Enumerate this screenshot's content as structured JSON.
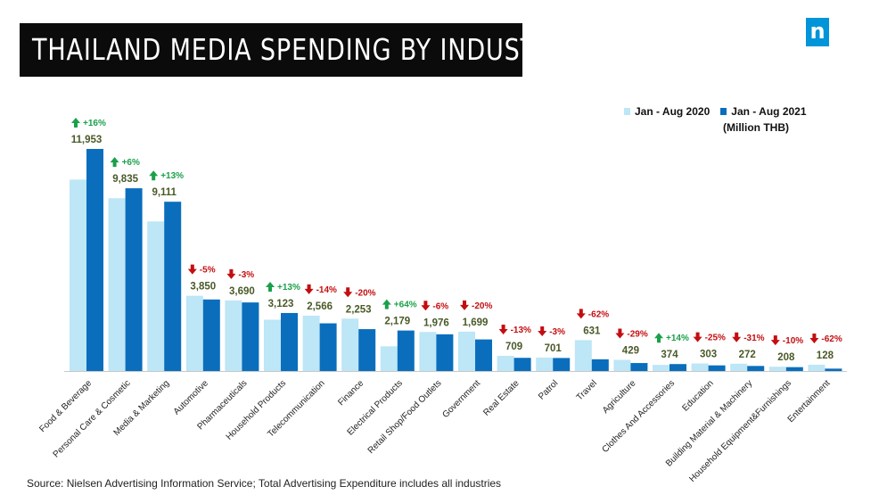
{
  "header": {
    "title": "THAILAND MEDIA SPENDING BY INDUSTRY",
    "logo_text": "n"
  },
  "legend": {
    "series1": "Jan - Aug 2020",
    "series2": "Jan - Aug 2021",
    "unit": "(Million THB)"
  },
  "footer": {
    "source": "Source: Nielsen Advertising Information Service; Total Advertising Expenditure includes all industries"
  },
  "colors": {
    "series1": "#bde6f7",
    "series2": "#0a6ebd",
    "up": "#1aa04a",
    "down": "#c40d10",
    "value_label": "#4a5a28"
  },
  "chart_data": {
    "type": "bar",
    "title": "THAILAND MEDIA SPENDING BY INDUSTRY",
    "ylabel": "",
    "xlabel": "",
    "ylim": [
      0,
      13000
    ],
    "grid": false,
    "legend_position": "top-right",
    "categories": [
      "Food & Beverage",
      "Personal Care & Cosmetic",
      "Media & Marketing",
      "Automotive",
      "Pharmaceuticals",
      "Household Products",
      "Telecommunication",
      "Finance",
      "Electrical Products",
      "Retail Shop/Food Outlets",
      "Government",
      "Real Estate",
      "Patrol",
      "Travel",
      "Agriculture",
      "Clothes And Accessories",
      "Education",
      "Building Material & Machinery",
      "Household Equipment&Furnishings",
      "Entertainment"
    ],
    "series": [
      {
        "name": "Jan - Aug 2020",
        "values": [
          10300,
          9300,
          8050,
          4050,
          3800,
          2760,
          2980,
          2820,
          1330,
          2100,
          2120,
          815,
          720,
          1660,
          600,
          330,
          405,
          395,
          232,
          338
        ]
      },
      {
        "name": "Jan - Aug 2021",
        "values": [
          11953,
          9835,
          9111,
          3850,
          3690,
          3123,
          2566,
          2253,
          2179,
          1976,
          1699,
          709,
          701,
          631,
          429,
          374,
          303,
          272,
          208,
          128
        ]
      }
    ],
    "value_labels": [
      "11,953",
      "9,835",
      "9,111",
      "3,850",
      "3,690",
      "3,123",
      "2,566",
      "2,253",
      "2,179",
      "1,976",
      "1,699",
      "709",
      "701",
      "631",
      "429",
      "374",
      "303",
      "272",
      "208",
      "128"
    ],
    "changes": [
      "+16%",
      "+6%",
      "+13%",
      "-5%",
      "-3%",
      "+13%",
      "-14%",
      "-20%",
      "+64%",
      "-6%",
      "-20%",
      "-13%",
      "-3%",
      "-62%",
      "-29%",
      "+14%",
      "-25%",
      "-31%",
      "-10%",
      "-62%"
    ]
  }
}
